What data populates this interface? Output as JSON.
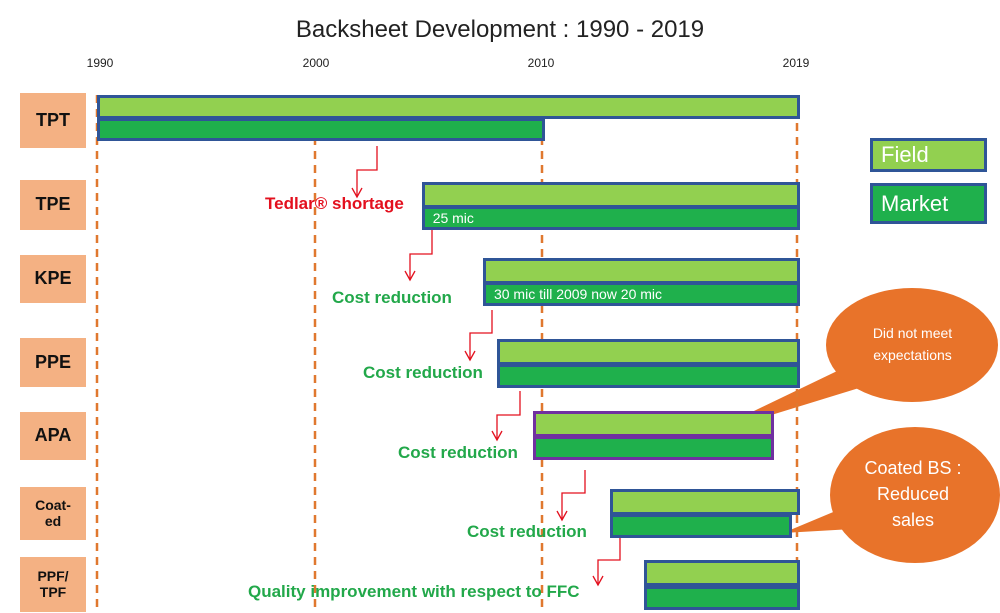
{
  "title": "Backsheet Development : 1990 - 2019",
  "axis": {
    "ticks": [
      "1990",
      "2000",
      "2010",
      "2019"
    ]
  },
  "legend": {
    "field": "Field",
    "market": "Market",
    "field_color": "#92d050",
    "market_color": "#1fb04c"
  },
  "rows": [
    {
      "label": "TPT",
      "field": [
        1990,
        2019
      ],
      "market": [
        1990,
        2010
      ],
      "market_text": ""
    },
    {
      "label": "TPE",
      "field": [
        2004.7,
        2019
      ],
      "market": [
        2004.7,
        2019
      ],
      "market_text": "25 mic"
    },
    {
      "label": "KPE",
      "field": [
        2007.4,
        2019
      ],
      "market": [
        2007.4,
        2019
      ],
      "market_text": "30 mic till 2009 now 20 mic"
    },
    {
      "label": "PPE",
      "field": [
        2008,
        2019
      ],
      "market": [
        2008,
        2019
      ],
      "market_text": ""
    },
    {
      "label": "APA",
      "field": [
        2009.6,
        2018.1
      ],
      "market": [
        2009.6,
        2018.1
      ],
      "market_text": ""
    },
    {
      "label": "Coat-ed",
      "field": [
        2012.4,
        2019
      ],
      "market": [
        2012.4,
        2018.7
      ],
      "market_text": ""
    },
    {
      "label": "PPF/ TPF",
      "field": [
        2013.6,
        2019
      ],
      "market": [
        2013.6,
        2019
      ],
      "market_text": ""
    }
  ],
  "annotations": [
    {
      "text": "Tedlar® shortage",
      "color": "#e3101e"
    },
    {
      "text": "Cost reduction",
      "color": "#22a84a"
    },
    {
      "text": "Cost reduction",
      "color": "#22a84a"
    },
    {
      "text": "Cost reduction",
      "color": "#22a84a"
    },
    {
      "text": "Cost reduction",
      "color": "#22a84a"
    },
    {
      "text": "Quality improvement with respect to FFC",
      "color": "#22a84a"
    }
  ],
  "callouts": [
    {
      "text": "Did not meet expectations",
      "color": "#e8732a"
    },
    {
      "text": "Coated  BS : Reduced sales",
      "color": "#e8732a"
    }
  ]
}
